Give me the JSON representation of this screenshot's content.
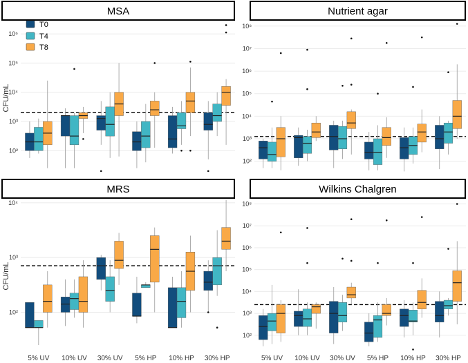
{
  "figure": {
    "legend": [
      {
        "label": "T0",
        "color": "#124d7d"
      },
      {
        "label": "T4",
        "color": "#41b6c4"
      },
      {
        "label": "T8",
        "color": "#f9a947"
      }
    ],
    "ylabel": "CFU/mL"
  },
  "chart_data": [
    {
      "type": "box",
      "title": "MSA",
      "ylabel": "CFU/mL",
      "yscale": "log10",
      "ylim_log10": [
        1.25,
        6.5
      ],
      "yticks": [
        {
          "exp": 2,
          "label": "10²"
        },
        {
          "exp": 3,
          "label": "10³"
        },
        {
          "exp": 4,
          "label": "10⁴"
        },
        {
          "exp": 5,
          "label": "10⁵"
        },
        {
          "exp": 6,
          "label": "10⁶"
        }
      ],
      "categories": [
        "5% UV",
        "10% UV",
        "30% UV",
        "5% HP",
        "10% HP",
        "30% HP"
      ],
      "threshold_log10": 3.3,
      "series": [
        {
          "name": "T0",
          "boxes": [
            {
              "q1": 2.0,
              "median": 2.3,
              "q3": 2.6,
              "wlo": 1.75,
              "whi": 3.0,
              "out": []
            },
            {
              "q1": 2.5,
              "median": 3.2,
              "q3": 3.2,
              "wlo": 1.4,
              "whi": 3.45,
              "out": []
            },
            {
              "q1": 2.7,
              "median": 3.1,
              "q3": 3.2,
              "wlo": 2.2,
              "whi": 3.7,
              "out": [
                1.3
              ]
            },
            {
              "q1": 2.0,
              "median": 2.3,
              "q3": 2.65,
              "wlo": 1.4,
              "whi": 3.0,
              "out": []
            },
            {
              "q1": 2.1,
              "median": 2.4,
              "q3": 3.2,
              "wlo": 1.9,
              "whi": 3.5,
              "out": []
            },
            {
              "q1": 2.7,
              "median": 2.9,
              "q3": 3.3,
              "wlo": 1.7,
              "whi": 3.7,
              "out": [
                1.3
              ]
            }
          ]
        },
        {
          "name": "T4",
          "boxes": [
            {
              "q1": 2.0,
              "median": 2.3,
              "q3": 2.8,
              "wlo": 1.9,
              "whi": 3.1,
              "out": []
            },
            {
              "q1": 2.2,
              "median": 2.5,
              "q3": 3.2,
              "wlo": 1.4,
              "whi": 3.3,
              "out": [
                4.8
              ]
            },
            {
              "q1": 2.5,
              "median": 2.9,
              "q3": 3.5,
              "wlo": 1.75,
              "whi": 4.0,
              "out": []
            },
            {
              "q1": 2.1,
              "median": 2.5,
              "q3": 3.0,
              "wlo": 1.6,
              "whi": 3.6,
              "out": []
            },
            {
              "q1": 2.75,
              "median": 2.85,
              "q3": 3.3,
              "wlo": 2.2,
              "whi": 3.7,
              "out": [
                2.0
              ]
            },
            {
              "q1": 3.0,
              "median": 3.2,
              "q3": 3.6,
              "wlo": 2.5,
              "whi": 4.0,
              "out": []
            }
          ]
        },
        {
          "name": "T8",
          "boxes": [
            {
              "q1": 2.2,
              "median": 2.6,
              "q3": 3.0,
              "wlo": 1.4,
              "whi": 4.4,
              "out": []
            },
            {
              "q1": 3.1,
              "median": 3.2,
              "q3": 3.3,
              "wlo": 2.6,
              "whi": 3.5,
              "out": [
                2.4
              ]
            },
            {
              "q1": 3.2,
              "median": 3.6,
              "q3": 4.0,
              "wlo": 1.8,
              "whi": 5.0,
              "out": []
            },
            {
              "q1": 3.2,
              "median": 3.4,
              "q3": 3.7,
              "wlo": 2.1,
              "whi": 4.0,
              "out": [
                5.0
              ]
            },
            {
              "q1": 3.3,
              "median": 3.7,
              "q3": 4.0,
              "wlo": 2.5,
              "whi": 4.85,
              "out": [
                5.05,
                2.0
              ]
            },
            {
              "q1": 3.55,
              "median": 4.0,
              "q3": 4.2,
              "wlo": 2.2,
              "whi": 4.45,
              "out": [
                6.05,
                6.3
              ]
            }
          ]
        }
      ]
    },
    {
      "type": "box",
      "title": "Nutrient agar",
      "ylabel": "",
      "yscale": "log10",
      "ylim_log10": [
        1.5,
        8.3
      ],
      "yticks": [
        {
          "exp": 2,
          "label": "10²"
        },
        {
          "exp": 3,
          "label": "10³"
        },
        {
          "exp": 4,
          "label": "10⁴"
        },
        {
          "exp": 5,
          "label": "10⁵"
        },
        {
          "exp": 6,
          "label": "10⁶"
        },
        {
          "exp": 7,
          "label": "10⁷"
        },
        {
          "exp": 8,
          "label": "10⁸"
        }
      ],
      "categories": [
        "5% UV",
        "10% UV",
        "30% UV",
        "5% HP",
        "10% HP",
        "30% HP"
      ],
      "threshold_log10": 3.1,
      "series": [
        {
          "name": "T0",
          "boxes": [
            {
              "q1": 2.1,
              "median": 2.6,
              "q3": 2.9,
              "wlo": 1.7,
              "whi": 3.0,
              "out": []
            },
            {
              "q1": 2.15,
              "median": 3.05,
              "q3": 3.15,
              "wlo": 1.8,
              "whi": 3.5,
              "out": []
            },
            {
              "q1": 2.5,
              "median": 3.1,
              "q3": 3.6,
              "wlo": 1.7,
              "whi": 3.8,
              "out": []
            },
            {
              "q1": 2.1,
              "median": 2.4,
              "q3": 2.85,
              "wlo": 1.6,
              "whi": 3.3,
              "out": []
            },
            {
              "q1": 2.1,
              "median": 2.6,
              "q3": 3.05,
              "wlo": 1.55,
              "whi": 3.5,
              "out": []
            },
            {
              "q1": 2.55,
              "median": 3.0,
              "q3": 3.6,
              "wlo": 1.65,
              "whi": 4.0,
              "out": []
            }
          ]
        },
        {
          "name": "T4",
          "boxes": [
            {
              "q1": 2.0,
              "median": 2.3,
              "q3": 2.85,
              "wlo": 1.7,
              "whi": 3.5,
              "out": [
                4.65
              ]
            },
            {
              "q1": 2.35,
              "median": 2.8,
              "q3": 3.1,
              "wlo": 2.0,
              "whi": 3.4,
              "out": [
                5.2,
                6.95
              ]
            },
            {
              "q1": 2.55,
              "median": 3.0,
              "q3": 3.55,
              "wlo": 2.1,
              "whi": 3.8,
              "out": [
                5.35
              ]
            },
            {
              "q1": 1.85,
              "median": 2.4,
              "q3": 3.0,
              "wlo": 1.6,
              "whi": 3.6,
              "out": [
                5.0
              ]
            },
            {
              "q1": 2.3,
              "median": 2.7,
              "q3": 3.1,
              "wlo": 1.9,
              "whi": 3.5,
              "out": [
                5.3
              ]
            },
            {
              "q1": 2.8,
              "median": 3.3,
              "q3": 3.7,
              "wlo": 2.3,
              "whi": 3.8,
              "out": [
                5.95
              ]
            }
          ]
        },
        {
          "name": "T8",
          "boxes": [
            {
              "q1": 2.2,
              "median": 3.0,
              "q3": 3.5,
              "wlo": 1.6,
              "whi": 4.0,
              "out": [
                6.8
              ]
            },
            {
              "q1": 3.05,
              "median": 3.3,
              "q3": 3.7,
              "wlo": 2.9,
              "whi": 4.0,
              "out": []
            },
            {
              "q1": 3.45,
              "median": 3.7,
              "q3": 4.2,
              "wlo": 2.3,
              "whi": 4.3,
              "out": [
                7.45,
                5.4
              ]
            },
            {
              "q1": 2.7,
              "median": 3.05,
              "q3": 3.5,
              "wlo": 2.15,
              "whi": 3.95,
              "out": [
                7.25
              ]
            },
            {
              "q1": 2.85,
              "median": 3.3,
              "q3": 3.65,
              "wlo": 2.4,
              "whi": 4.3,
              "out": [
                7.5
              ]
            },
            {
              "q1": 3.45,
              "median": 4.0,
              "q3": 4.7,
              "wlo": 3.0,
              "whi": 6.3,
              "out": [
                8.1
              ]
            }
          ]
        }
      ]
    },
    {
      "type": "box",
      "title": "MRS",
      "ylabel": "CFU/mL",
      "yscale": "log10",
      "ylim_log10": [
        1.3,
        4.1
      ],
      "yticks": [
        {
          "exp": 2,
          "label": "10²"
        },
        {
          "exp": 3,
          "label": "10³"
        },
        {
          "exp": 4,
          "label": "10⁴"
        }
      ],
      "categories": [
        "5% UV",
        "10% UV",
        "30% UV",
        "5% HP",
        "10% HP",
        "30% HP"
      ],
      "threshold_log10": 2.85,
      "series": [
        {
          "name": "T0",
          "boxes": [
            {
              "q1": 1.72,
              "median": 1.72,
              "q3": 2.18,
              "wlo": 1.72,
              "whi": 2.18,
              "out": []
            },
            {
              "q1": 2.0,
              "median": 2.15,
              "q3": 2.28,
              "wlo": 1.75,
              "whi": 2.6,
              "out": []
            },
            {
              "q1": 2.6,
              "median": 2.85,
              "q3": 3.0,
              "wlo": 2.4,
              "whi": 3.05,
              "out": []
            },
            {
              "q1": 1.93,
              "median": 1.93,
              "q3": 2.35,
              "wlo": 1.8,
              "whi": 2.65,
              "out": []
            },
            {
              "q1": 1.72,
              "median": 1.72,
              "q3": 2.45,
              "wlo": 1.72,
              "whi": 2.65,
              "out": []
            },
            {
              "q1": 2.4,
              "median": 2.55,
              "q3": 2.75,
              "wlo": 2.0,
              "whi": 2.95,
              "out": [
                2.0
              ]
            }
          ]
        },
        {
          "name": "T4",
          "boxes": [
            {
              "q1": 1.72,
              "median": 1.72,
              "q3": 1.85,
              "wlo": 1.4,
              "whi": 1.85,
              "out": []
            },
            {
              "q1": 2.05,
              "median": 2.25,
              "q3": 2.35,
              "wlo": 1.9,
              "whi": 2.6,
              "out": []
            },
            {
              "q1": 2.2,
              "median": 2.4,
              "q3": 2.65,
              "wlo": 2.0,
              "whi": 2.95,
              "out": []
            },
            {
              "q1": 2.45,
              "median": 2.5,
              "q3": 2.5,
              "wlo": 2.45,
              "whi": 2.55,
              "out": []
            },
            {
              "q1": 1.9,
              "median": 2.2,
              "q3": 2.45,
              "wlo": 1.72,
              "whi": 2.75,
              "out": []
            },
            {
              "q1": 2.5,
              "median": 2.85,
              "q3": 3.0,
              "wlo": 2.3,
              "whi": 3.5,
              "out": [
                1.72
              ]
            }
          ]
        },
        {
          "name": "T8",
          "boxes": [
            {
              "q1": 2.0,
              "median": 2.2,
              "q3": 2.5,
              "wlo": 1.72,
              "whi": 2.75,
              "out": []
            },
            {
              "q1": 2.0,
              "median": 2.2,
              "q3": 2.65,
              "wlo": 1.72,
              "whi": 2.95,
              "out": []
            },
            {
              "q1": 2.8,
              "median": 2.95,
              "q3": 3.3,
              "wlo": 2.5,
              "whi": 3.45,
              "out": []
            },
            {
              "q1": 2.55,
              "median": 3.15,
              "q3": 3.4,
              "wlo": 2.0,
              "whi": 3.55,
              "out": []
            },
            {
              "q1": 2.4,
              "median": 2.75,
              "q3": 3.1,
              "wlo": 2.0,
              "whi": 3.4,
              "out": []
            },
            {
              "q1": 3.15,
              "median": 3.3,
              "q3": 3.55,
              "wlo": 2.75,
              "whi": 4.05,
              "out": []
            }
          ]
        }
      ]
    },
    {
      "type": "box",
      "title": "Wilkins Chalgren",
      "ylabel": "",
      "yscale": "log10",
      "ylim_log10": [
        1.3,
        8.3
      ],
      "yticks": [
        {
          "exp": 2,
          "label": "10²"
        },
        {
          "exp": 3,
          "label": "10³"
        },
        {
          "exp": 4,
          "label": "10⁴"
        },
        {
          "exp": 5,
          "label": "10⁵"
        },
        {
          "exp": 6,
          "label": "10⁶"
        },
        {
          "exp": 7,
          "label": "10⁷"
        },
        {
          "exp": 8,
          "label": "10⁸"
        }
      ],
      "categories": [
        "5% UV",
        "10% UV",
        "30% UV",
        "5% HP",
        "10% HP",
        "30% HP"
      ],
      "threshold_log10": 3.4,
      "series": [
        {
          "name": "T0",
          "boxes": [
            {
              "q1": 1.8,
              "median": 2.4,
              "q3": 2.9,
              "wlo": 1.5,
              "whi": 3.2,
              "out": []
            },
            {
              "q1": 2.4,
              "median": 2.9,
              "q3": 3.1,
              "wlo": 2.0,
              "whi": 4.1,
              "out": []
            },
            {
              "q1": 2.1,
              "median": 3.0,
              "q3": 3.55,
              "wlo": 1.6,
              "whi": 4.2,
              "out": []
            },
            {
              "q1": 1.7,
              "median": 2.1,
              "q3": 2.6,
              "wlo": 1.5,
              "whi": 3.0,
              "out": []
            },
            {
              "q1": 2.4,
              "median": 2.9,
              "q3": 3.2,
              "wlo": 1.9,
              "whi": 3.6,
              "out": []
            },
            {
              "q1": 2.6,
              "median": 2.9,
              "q3": 3.55,
              "wlo": 1.9,
              "whi": 4.0,
              "out": []
            }
          ]
        },
        {
          "name": "T4",
          "boxes": [
            {
              "q1": 2.2,
              "median": 2.65,
              "q3": 3.0,
              "wlo": 1.6,
              "whi": 4.3,
              "out": []
            },
            {
              "q1": 2.4,
              "median": 2.75,
              "q3": 3.2,
              "wlo": 2.0,
              "whi": 3.5,
              "out": [
                5.3,
                6.9
              ]
            },
            {
              "q1": 2.6,
              "median": 2.9,
              "q3": 3.5,
              "wlo": 2.2,
              "whi": 3.85,
              "out": [
                5.5
              ]
            },
            {
              "q1": 1.9,
              "median": 2.7,
              "q3": 2.9,
              "wlo": 1.7,
              "whi": 3.5,
              "out": [
                5.3
              ]
            },
            {
              "q1": 2.6,
              "median": 2.65,
              "q3": 3.15,
              "wlo": 2.0,
              "whi": 3.5,
              "out": [
                1.35,
                5.3
              ]
            },
            {
              "q1": 3.2,
              "median": 3.35,
              "q3": 3.6,
              "wlo": 2.9,
              "whi": 3.7,
              "out": [
                5.95
              ]
            }
          ]
        },
        {
          "name": "T8",
          "boxes": [
            {
              "q1": 2.1,
              "median": 3.0,
              "q3": 3.4,
              "wlo": 1.7,
              "whi": 3.6,
              "out": [
                6.7
              ]
            },
            {
              "q1": 3.0,
              "median": 3.3,
              "q3": 3.4,
              "wlo": 2.3,
              "whi": 3.5,
              "out": []
            },
            {
              "q1": 3.7,
              "median": 3.85,
              "q3": 4.2,
              "wlo": 3.4,
              "whi": 4.4,
              "out": [
                7.3,
                5.4
              ]
            },
            {
              "q1": 2.9,
              "median": 3.0,
              "q3": 3.4,
              "wlo": 2.45,
              "whi": 3.7,
              "out": [
                7.25
              ]
            },
            {
              "q1": 3.2,
              "median": 3.5,
              "q3": 4.05,
              "wlo": 2.8,
              "whi": 4.6,
              "out": [
                7.4
              ]
            },
            {
              "q1": 3.55,
              "median": 4.4,
              "q3": 4.95,
              "wlo": 2.5,
              "whi": 6.3,
              "out": [
                8.0
              ]
            }
          ]
        }
      ]
    }
  ]
}
